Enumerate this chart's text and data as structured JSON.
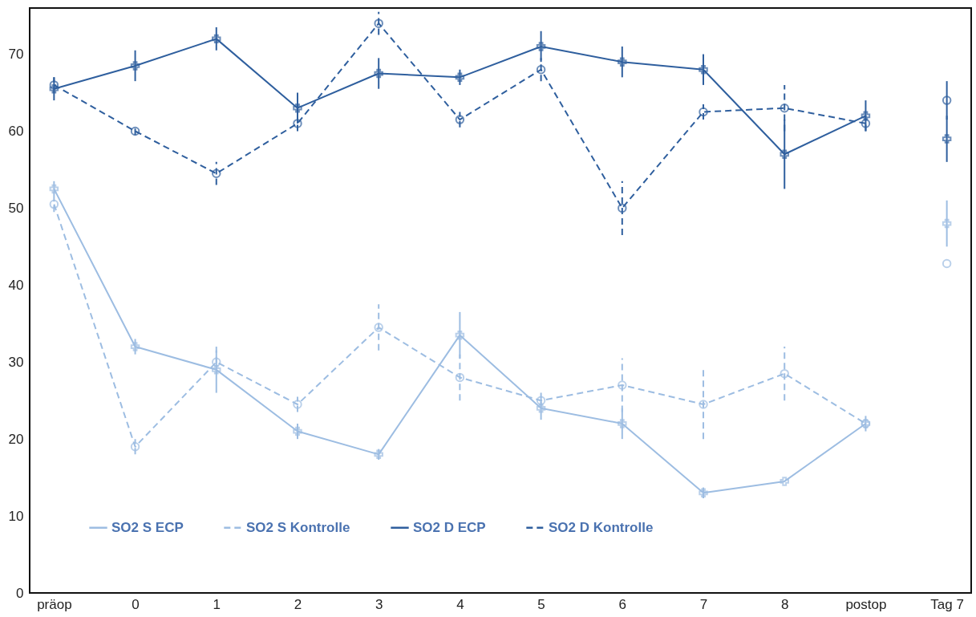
{
  "chart_data": {
    "type": "line",
    "categories": [
      "präop",
      "0",
      "1",
      "2",
      "3",
      "4",
      "5",
      "6",
      "7",
      "8",
      "postop",
      "Tag 7"
    ],
    "ylim": [
      0,
      76
    ],
    "yticks": [
      0,
      10,
      20,
      30,
      40,
      50,
      60,
      70
    ],
    "grid": false,
    "legend": "bottom",
    "series": [
      {
        "name": "SO2 S ECP",
        "color": "#9dbde2",
        "line_style": "solid",
        "marker": "cross",
        "values": [
          52.5,
          32,
          29,
          21,
          18,
          33.5,
          24,
          22,
          13,
          14.5,
          22,
          null
        ],
        "errors": [
          1,
          1,
          3,
          1,
          0.7,
          3,
          1.5,
          2,
          0.7,
          null,
          1,
          null
        ]
      },
      {
        "name": "SO2 S Kontrolle",
        "color": "#9dbde2",
        "line_style": "dashed",
        "marker": "circle",
        "values": [
          50.5,
          19,
          30,
          24.5,
          34.5,
          28,
          25,
          27,
          24.5,
          28.5,
          22,
          null
        ],
        "errors": [
          1,
          1,
          1.5,
          1,
          3,
          3,
          1,
          3.5,
          4.5,
          3.5,
          null,
          null
        ]
      },
      {
        "name": "SO2 D ECP",
        "color": "#2f5f9e",
        "line_style": "solid",
        "marker": "cross",
        "values": [
          65.5,
          68.5,
          72,
          63,
          67.5,
          67,
          71,
          69,
          68,
          57,
          62,
          null
        ],
        "errors": [
          1.5,
          2,
          1.5,
          2,
          2,
          1,
          2,
          2,
          2,
          4.5,
          2,
          null
        ]
      },
      {
        "name": "SO2 D Kontrolle",
        "color": "#2f5f9e",
        "line_style": "dashed",
        "marker": "circle",
        "values": [
          66,
          60,
          54.5,
          61,
          74,
          61.5,
          68,
          50,
          62.5,
          63,
          61,
          null
        ],
        "errors": [
          1,
          0.5,
          1.5,
          1,
          1.5,
          1,
          1.5,
          3.5,
          1,
          3,
          1,
          null
        ]
      },
      {
        "type": "scatter",
        "color": "#9dbde2",
        "marker": "cross",
        "x": [
          "Tag 7"
        ],
        "values": [
          48
        ],
        "errors": [
          3
        ]
      },
      {
        "type": "scatter",
        "color": "#9dbde2",
        "marker": "circle",
        "x": [
          "Tag 7"
        ],
        "values": [
          42.8
        ],
        "errors": [
          null
        ]
      },
      {
        "type": "scatter",
        "color": "#2f5f9e",
        "marker": "cross",
        "x": [
          "Tag 7"
        ],
        "values": [
          59
        ],
        "errors": [
          3
        ]
      },
      {
        "type": "scatter",
        "color": "#2f5f9e",
        "marker": "circle",
        "x": [
          "Tag 7"
        ],
        "values": [
          64
        ],
        "errors": [
          2.5
        ]
      }
    ]
  }
}
